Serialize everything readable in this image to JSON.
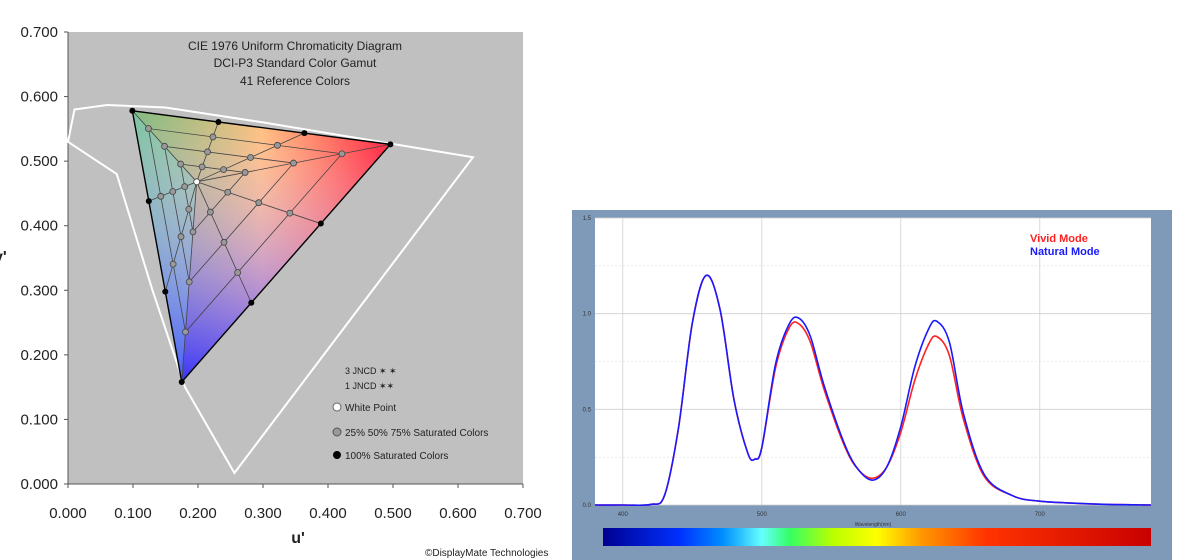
{
  "chart_data": [
    {
      "type": "scatter",
      "title_lines": [
        "CIE 1976 Uniform Chromaticity Diagram",
        "DCI-P3 Standard Color Gamut",
        "41 Reference Colors"
      ],
      "xlabel": "u'",
      "ylabel": "v'",
      "xlim": [
        0.0,
        0.7
      ],
      "ylim": [
        0.0,
        0.7
      ],
      "x_ticks": [
        "0.000",
        "0.100",
        "0.200",
        "0.300",
        "0.400",
        "0.500",
        "0.600",
        "0.700"
      ],
      "y_ticks": [
        "0.000",
        "0.100",
        "0.200",
        "0.300",
        "0.400",
        "0.500",
        "0.600",
        "0.700"
      ],
      "gamut_primaries": {
        "red": [
          0.496,
          0.526
        ],
        "green": [
          0.099,
          0.578
        ],
        "blue": [
          0.175,
          0.158
        ]
      },
      "white_point": [
        0.198,
        0.468
      ],
      "spectral_locus": [
        [
          0.256,
          0.017
        ],
        [
          0.18,
          0.15
        ],
        [
          0.13,
          0.3
        ],
        [
          0.075,
          0.48
        ],
        [
          0.0,
          0.53
        ],
        [
          0.01,
          0.58
        ],
        [
          0.06,
          0.587
        ],
        [
          0.15,
          0.583
        ],
        [
          0.3,
          0.56
        ],
        [
          0.623,
          0.506
        ]
      ],
      "legend": {
        "jncd_3": "3 JNCD ✶ ✶",
        "jncd_1": "1 JNCD ✶✶",
        "white_point": "White Point",
        "saturated_partial": "25% 50% 75% Saturated Colors",
        "saturated_full": "100% Saturated Colors"
      },
      "credit": "©DisplayMate Technologies"
    },
    {
      "type": "line",
      "xlabel": "Wavelength(nm)",
      "xlim": [
        380,
        780
      ],
      "ylim": [
        0.0,
        1.5
      ],
      "x_ticks": [
        "400",
        "500",
        "600",
        "700"
      ],
      "y_ticks": [
        "0.0",
        "0.5",
        "1.0",
        "1.5"
      ],
      "x": [
        380,
        400,
        420,
        430,
        440,
        450,
        460,
        470,
        480,
        490,
        495,
        500,
        510,
        520,
        527,
        535,
        545,
        560,
        570,
        580,
        590,
        600,
        610,
        620,
        626,
        635,
        645,
        660,
        680,
        700,
        740,
        780
      ],
      "series": [
        {
          "name": "Vivid Mode",
          "color": "#ff2222",
          "values": [
            0.0,
            0.0,
            0.003,
            0.05,
            0.4,
            0.95,
            1.2,
            1.02,
            0.55,
            0.27,
            0.24,
            0.3,
            0.72,
            0.93,
            0.945,
            0.85,
            0.6,
            0.3,
            0.18,
            0.14,
            0.2,
            0.38,
            0.65,
            0.84,
            0.88,
            0.78,
            0.45,
            0.15,
            0.05,
            0.02,
            0.005,
            0.0
          ]
        },
        {
          "name": "Natural Mode",
          "color": "#1a1aff",
          "values": [
            0.0,
            0.0,
            0.003,
            0.05,
            0.4,
            0.95,
            1.2,
            1.02,
            0.55,
            0.27,
            0.24,
            0.3,
            0.74,
            0.95,
            0.975,
            0.88,
            0.62,
            0.31,
            0.18,
            0.13,
            0.2,
            0.41,
            0.72,
            0.92,
            0.96,
            0.85,
            0.48,
            0.16,
            0.05,
            0.02,
            0.005,
            0.0
          ]
        }
      ]
    }
  ]
}
